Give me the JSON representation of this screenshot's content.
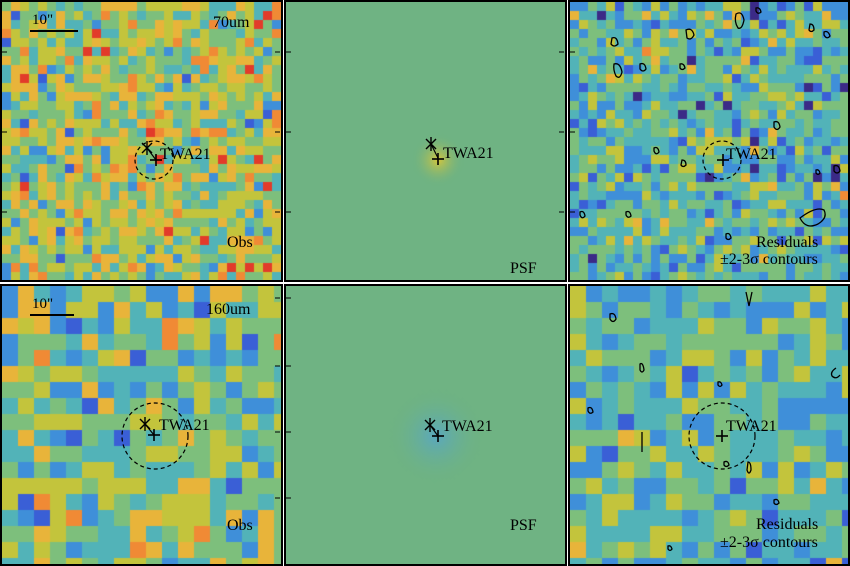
{
  "rows": [
    {
      "band_label": "70um",
      "scale_label": "10\"",
      "panels": [
        {
          "kind": "obs",
          "corner_label": "Obs",
          "corner_label_2": "",
          "target_label": "TWA21",
          "has_circle": true
        },
        {
          "kind": "psf",
          "corner_label": "PSF",
          "corner_label_2": "",
          "target_label": "TWA21",
          "has_circle": false
        },
        {
          "kind": "residual",
          "corner_label": "Residuals",
          "corner_label_2": "±2-3σ contours",
          "target_label": "TWA21",
          "has_circle": true
        }
      ]
    },
    {
      "band_label": "160um",
      "scale_label": "10\"",
      "panels": [
        {
          "kind": "obs",
          "corner_label": "Obs",
          "corner_label_2": "",
          "target_label": "TWA21",
          "has_circle": true
        },
        {
          "kind": "psf",
          "corner_label": "PSF",
          "corner_label_2": "",
          "target_label": "TWA21",
          "has_circle": false
        },
        {
          "kind": "residual",
          "corner_label": "Residuals",
          "corner_label_2": "±2-3σ contours",
          "target_label": "TWA21",
          "has_circle": true
        }
      ]
    }
  ],
  "colors": {
    "colormap": [
      "#3b2a87",
      "#3a5fd6",
      "#3f8fd9",
      "#52b3b8",
      "#7dbf7c",
      "#c3c43c",
      "#e8b43a",
      "#f08a35",
      "#e23b2a"
    ],
    "psf_background": "#6fb383",
    "psf_peak_70": "#d6c63a",
    "psf_peak_160": "#5aa8c0"
  },
  "icons": {
    "star_marker": "asterisk-icon",
    "target_marker": "plus-icon"
  }
}
